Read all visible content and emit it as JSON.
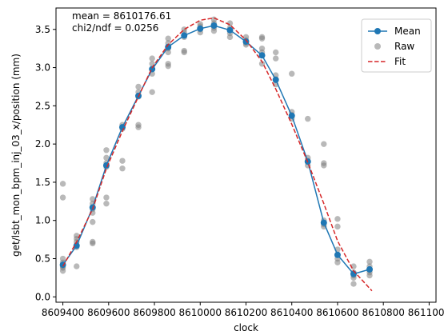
{
  "chart_data": {
    "type": "scatter",
    "xlabel": "clock",
    "ylabel": "get/lsbt_mon_bpm_inj_03_x/position (mm)",
    "xlim": [
      8609370,
      8611030
    ],
    "ylim": [
      -0.07,
      3.78
    ],
    "x_ticks": [
      8609400,
      8609600,
      8609800,
      8610000,
      8610200,
      8610400,
      8610600,
      8610800,
      8611000
    ],
    "x_tick_labels": [
      "8609400",
      "8609600",
      "8609800",
      "8610000",
      "8610200",
      "8610400",
      "8610600",
      "8610800",
      "8611000"
    ],
    "y_ticks": [
      0.0,
      0.5,
      1.0,
      1.5,
      2.0,
      2.5,
      3.0,
      3.5
    ],
    "y_tick_labels": [
      "0.0",
      "0.5",
      "1.0",
      "1.5",
      "2.0",
      "2.5",
      "3.0",
      "3.5"
    ],
    "annotations": [
      "mean = 8610176.61",
      "chi2/ndf = 0.0256"
    ],
    "legend": {
      "placement": "upper right",
      "entries": [
        "Mean",
        "Raw",
        "Fit"
      ]
    },
    "series": [
      {
        "name": "Mean",
        "kind": "line-markers",
        "color": "#1f77b4",
        "points": [
          [
            8609400,
            0.42
          ],
          [
            8609460,
            0.67
          ],
          [
            8609530,
            1.17
          ],
          [
            8609590,
            1.72
          ],
          [
            8609660,
            2.22
          ],
          [
            8609730,
            2.63
          ],
          [
            8609790,
            2.98
          ],
          [
            8609860,
            3.27
          ],
          [
            8609930,
            3.42
          ],
          [
            8610000,
            3.51
          ],
          [
            8610060,
            3.55
          ],
          [
            8610130,
            3.49
          ],
          [
            8610200,
            3.34
          ],
          [
            8610270,
            3.16
          ],
          [
            8610330,
            2.84
          ],
          [
            8610400,
            2.37
          ],
          [
            8610470,
            1.77
          ],
          [
            8610540,
            0.97
          ],
          [
            8610600,
            0.55
          ],
          [
            8610670,
            0.3
          ],
          [
            8610740,
            0.36
          ]
        ]
      },
      {
        "name": "Raw",
        "kind": "scatter",
        "color": "#808080",
        "points": [
          [
            8609400,
            1.48
          ],
          [
            8609400,
            1.3
          ],
          [
            8609400,
            0.5
          ],
          [
            8609400,
            0.45
          ],
          [
            8609400,
            0.4
          ],
          [
            8609400,
            0.38
          ],
          [
            8609400,
            0.34
          ],
          [
            8609460,
            0.8
          ],
          [
            8609460,
            0.76
          ],
          [
            8609460,
            0.72
          ],
          [
            8609460,
            0.68
          ],
          [
            8609460,
            0.65
          ],
          [
            8609460,
            0.4
          ],
          [
            8609530,
            1.28
          ],
          [
            8609530,
            1.22
          ],
          [
            8609530,
            1.15
          ],
          [
            8609530,
            1.1
          ],
          [
            8609530,
            0.98
          ],
          [
            8609530,
            0.72
          ],
          [
            8609530,
            0.7
          ],
          [
            8609590,
            1.92
          ],
          [
            8609590,
            1.82
          ],
          [
            8609590,
            1.75
          ],
          [
            8609590,
            1.7
          ],
          [
            8609590,
            1.3
          ],
          [
            8609590,
            1.22
          ],
          [
            8609660,
            2.25
          ],
          [
            8609660,
            2.2
          ],
          [
            8609660,
            1.78
          ],
          [
            8609660,
            1.68
          ],
          [
            8609730,
            2.75
          ],
          [
            8609730,
            2.68
          ],
          [
            8609730,
            2.62
          ],
          [
            8609730,
            2.25
          ],
          [
            8609730,
            2.22
          ],
          [
            8609790,
            3.12
          ],
          [
            8609790,
            3.05
          ],
          [
            8609790,
            2.98
          ],
          [
            8609790,
            2.92
          ],
          [
            8609790,
            2.68
          ],
          [
            8609860,
            3.38
          ],
          [
            8609860,
            3.32
          ],
          [
            8609860,
            3.25
          ],
          [
            8609860,
            3.2
          ],
          [
            8609860,
            3.05
          ],
          [
            8609860,
            3.02
          ],
          [
            8609930,
            3.5
          ],
          [
            8609930,
            3.46
          ],
          [
            8609930,
            3.4
          ],
          [
            8609930,
            3.22
          ],
          [
            8609930,
            3.2
          ],
          [
            8610000,
            3.57
          ],
          [
            8610000,
            3.54
          ],
          [
            8610000,
            3.5
          ],
          [
            8610000,
            3.46
          ],
          [
            8610060,
            3.63
          ],
          [
            8610060,
            3.58
          ],
          [
            8610060,
            3.55
          ],
          [
            8610060,
            3.52
          ],
          [
            8610060,
            3.48
          ],
          [
            8610130,
            3.58
          ],
          [
            8610130,
            3.52
          ],
          [
            8610130,
            3.45
          ],
          [
            8610130,
            3.4
          ],
          [
            8610200,
            3.4
          ],
          [
            8610200,
            3.36
          ],
          [
            8610200,
            3.32
          ],
          [
            8610200,
            3.3
          ],
          [
            8610270,
            3.4
          ],
          [
            8610270,
            3.38
          ],
          [
            8610270,
            3.25
          ],
          [
            8610270,
            3.2
          ],
          [
            8610270,
            3.05
          ],
          [
            8610330,
            3.2
          ],
          [
            8610330,
            3.12
          ],
          [
            8610330,
            2.9
          ],
          [
            8610330,
            2.85
          ],
          [
            8610330,
            2.78
          ],
          [
            8610400,
            2.92
          ],
          [
            8610400,
            2.42
          ],
          [
            8610400,
            2.38
          ],
          [
            8610400,
            2.33
          ],
          [
            8610470,
            2.33
          ],
          [
            8610470,
            1.82
          ],
          [
            8610470,
            1.78
          ],
          [
            8610470,
            1.72
          ],
          [
            8610540,
            2.0
          ],
          [
            8610540,
            1.75
          ],
          [
            8610540,
            1.72
          ],
          [
            8610540,
            1.0
          ],
          [
            8610540,
            0.95
          ],
          [
            8610540,
            0.92
          ],
          [
            8610600,
            1.02
          ],
          [
            8610600,
            0.92
          ],
          [
            8610600,
            0.62
          ],
          [
            8610600,
            0.55
          ],
          [
            8610600,
            0.5
          ],
          [
            8610600,
            0.45
          ],
          [
            8610670,
            0.4
          ],
          [
            8610670,
            0.32
          ],
          [
            8610670,
            0.28
          ],
          [
            8610670,
            0.25
          ],
          [
            8610670,
            0.17
          ],
          [
            8610740,
            0.46
          ],
          [
            8610740,
            0.4
          ],
          [
            8610740,
            0.35
          ],
          [
            8610740,
            0.32
          ],
          [
            8610740,
            0.28
          ]
        ]
      },
      {
        "name": "Fit",
        "kind": "dashed-line",
        "color": "#d62728",
        "points": [
          [
            8609400,
            0.4
          ],
          [
            8609460,
            0.72
          ],
          [
            8609530,
            1.15
          ],
          [
            8609590,
            1.68
          ],
          [
            8609660,
            2.17
          ],
          [
            8609730,
            2.62
          ],
          [
            8609790,
            3.0
          ],
          [
            8609860,
            3.3
          ],
          [
            8609930,
            3.5
          ],
          [
            8610000,
            3.62
          ],
          [
            8610060,
            3.65
          ],
          [
            8610130,
            3.56
          ],
          [
            8610200,
            3.36
          ],
          [
            8610270,
            3.08
          ],
          [
            8610330,
            2.72
          ],
          [
            8610400,
            2.26
          ],
          [
            8610470,
            1.76
          ],
          [
            8610540,
            1.22
          ],
          [
            8610600,
            0.73
          ],
          [
            8610670,
            0.34
          ],
          [
            8610750,
            0.08
          ]
        ]
      }
    ]
  }
}
